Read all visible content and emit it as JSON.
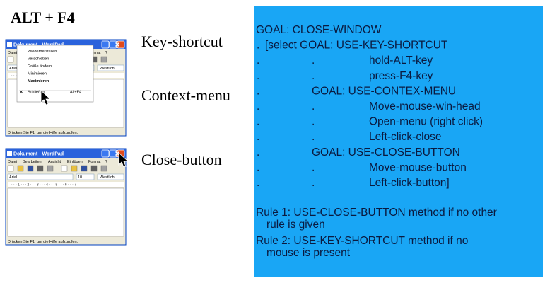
{
  "header": {
    "title": "ALT + F4"
  },
  "methods": [
    "Key-shortcut",
    "Context-menu",
    "Close-button"
  ],
  "window": {
    "title": "Dokument - WordPad",
    "menu": [
      "Datei",
      "Bearbeiten",
      "Ansicht",
      "Einfügen",
      "Format",
      "?"
    ],
    "font": "Arial",
    "size": "10",
    "script": "Westlich",
    "ruler": "· · · 1 · · · 2 · · · 3 · · · 4 · · · 5 · · · 6 · · · 7",
    "status": "Drücken Sie F1, um die Hilfe aufzurufen."
  },
  "context_menu": {
    "items": [
      "Wiederherstellen",
      "Verschieben",
      "Größe ändern",
      "Minimieren",
      "Maximieren",
      "Schließen"
    ],
    "shortcut": "Alt+F4"
  },
  "goals": {
    "lines": [
      {
        "text": "GOAL: CLOSE-WINDOW"
      },
      {
        "dot1": ".",
        "text": "[select GOAL: USE-KEY-SHORTCUT"
      },
      {
        "dot1": ".",
        "dot2": ".",
        "text": "hold-ALT-key"
      },
      {
        "dot1": ".",
        "dot2": ".",
        "text": "press-F4-key"
      },
      {
        "dot1": ".",
        "text": "GOAL: USE-CONTEX-MENU"
      },
      {
        "dot1": ".",
        "dot2": ".",
        "text": "Move-mouse-win-head"
      },
      {
        "dot1": ".",
        "dot2": ".",
        "text": "Open-menu (right click)"
      },
      {
        "dot1": ".",
        "dot2": ".",
        "text": "Left-click-close"
      },
      {
        "dot1": ".",
        "text": "GOAL: USE-CLOSE-BUTTON"
      },
      {
        "dot1": ".",
        "dot2": ".",
        "text": "Move-mouse-button"
      },
      {
        "dot1": ".",
        "dot2": ".",
        "text": "Left-click-button]"
      }
    ],
    "rules": [
      [
        "Rule 1: USE-CLOSE-BUTTON method if no other",
        "rule is given"
      ],
      [
        "Rule 2: USE-KEY-SHORTCUT method if no",
        "mouse is present"
      ]
    ]
  }
}
